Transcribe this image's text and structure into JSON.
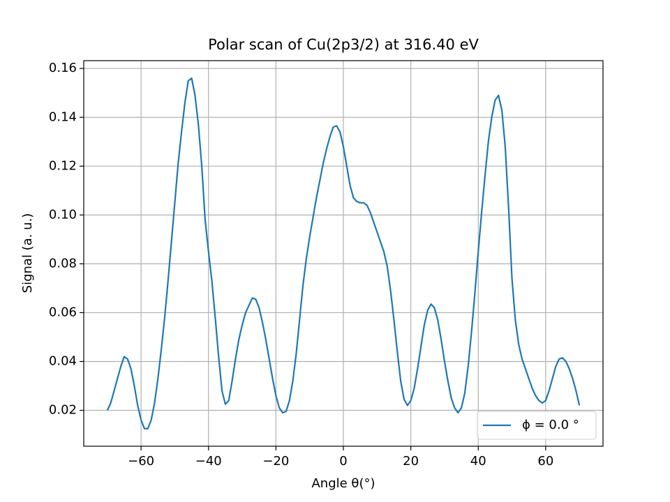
{
  "chart_data": {
    "type": "line",
    "title": "Polar scan of Cu(2p3/2) at 316.40 eV",
    "x_label": "Angle θ(°)",
    "y_label": "Signal (a. u.)",
    "x": [
      -70,
      -69,
      -68,
      -67,
      -66,
      -65,
      -64,
      -63,
      -62,
      -61,
      -60,
      -59,
      -58,
      -57,
      -56,
      -55,
      -54,
      -53,
      -52,
      -51,
      -50,
      -49,
      -48,
      -47,
      -46,
      -45,
      -44,
      -43,
      -42,
      -41,
      -40,
      -39,
      -38,
      -37,
      -36,
      -35,
      -34,
      -33,
      -32,
      -31,
      -30,
      -29,
      -28,
      -27,
      -26,
      -25,
      -24,
      -23,
      -22,
      -21,
      -20,
      -19,
      -18,
      -17,
      -16,
      -15,
      -14,
      -13,
      -12,
      -11,
      -10,
      -9,
      -8,
      -7,
      -6,
      -5,
      -4,
      -3,
      -2,
      -1,
      0,
      1,
      2,
      3,
      4,
      5,
      6,
      7,
      8,
      9,
      10,
      11,
      12,
      13,
      14,
      15,
      16,
      17,
      18,
      19,
      20,
      21,
      22,
      23,
      24,
      25,
      26,
      27,
      28,
      29,
      30,
      31,
      32,
      33,
      34,
      35,
      36,
      37,
      38,
      39,
      40,
      41,
      42,
      43,
      44,
      45,
      46,
      47,
      48,
      49,
      50,
      51,
      52,
      53,
      54,
      55,
      56,
      57,
      58,
      59,
      60,
      61,
      62,
      63,
      64,
      65,
      66,
      67,
      68,
      69,
      70
    ],
    "series": [
      {
        "name": "ϕ = 0.0 °",
        "color": "#1f77b4",
        "values": [
          0.02,
          0.023,
          0.028,
          0.033,
          0.038,
          0.042,
          0.041,
          0.037,
          0.03,
          0.022,
          0.016,
          0.0125,
          0.0125,
          0.016,
          0.023,
          0.033,
          0.045,
          0.058,
          0.073,
          0.089,
          0.105,
          0.121,
          0.134,
          0.146,
          0.155,
          0.156,
          0.149,
          0.137,
          0.12,
          0.098,
          0.085,
          0.073,
          0.058,
          0.042,
          0.028,
          0.0225,
          0.024,
          0.032,
          0.041,
          0.049,
          0.055,
          0.06,
          0.063,
          0.066,
          0.0655,
          0.062,
          0.056,
          0.049,
          0.041,
          0.033,
          0.026,
          0.021,
          0.019,
          0.0195,
          0.024,
          0.032,
          0.043,
          0.057,
          0.071,
          0.082,
          0.091,
          0.099,
          0.107,
          0.114,
          0.121,
          0.127,
          0.132,
          0.136,
          0.1365,
          0.134,
          0.128,
          0.12,
          0.112,
          0.107,
          0.1055,
          0.105,
          0.105,
          0.104,
          0.101,
          0.097,
          0.093,
          0.089,
          0.085,
          0.079,
          0.069,
          0.057,
          0.044,
          0.032,
          0.0245,
          0.022,
          0.024,
          0.029,
          0.037,
          0.046,
          0.055,
          0.061,
          0.0635,
          0.062,
          0.057,
          0.049,
          0.04,
          0.032,
          0.025,
          0.021,
          0.019,
          0.021,
          0.027,
          0.038,
          0.052,
          0.068,
          0.085,
          0.101,
          0.116,
          0.13,
          0.14,
          0.147,
          0.149,
          0.143,
          0.128,
          0.103,
          0.074,
          0.057,
          0.047,
          0.041,
          0.037,
          0.033,
          0.029,
          0.026,
          0.024,
          0.023,
          0.024,
          0.028,
          0.033,
          0.038,
          0.041,
          0.0415,
          0.04,
          0.037,
          0.033,
          0.028,
          0.022
        ]
      }
    ],
    "xlim": [
      -77,
      77
    ],
    "ylim": [
      0.0053,
      0.1632
    ],
    "xticks": [
      {
        "value": -60,
        "label": "−60"
      },
      {
        "value": -40,
        "label": "−40"
      },
      {
        "value": -20,
        "label": "−20"
      },
      0,
      20,
      40,
      60
    ],
    "yticks": [
      0.02,
      0.04,
      0.06,
      0.08,
      {
        "value": 0.1,
        "label": "0.10"
      },
      0.12,
      0.14,
      0.16
    ],
    "grid": true,
    "legend": "lower right"
  }
}
